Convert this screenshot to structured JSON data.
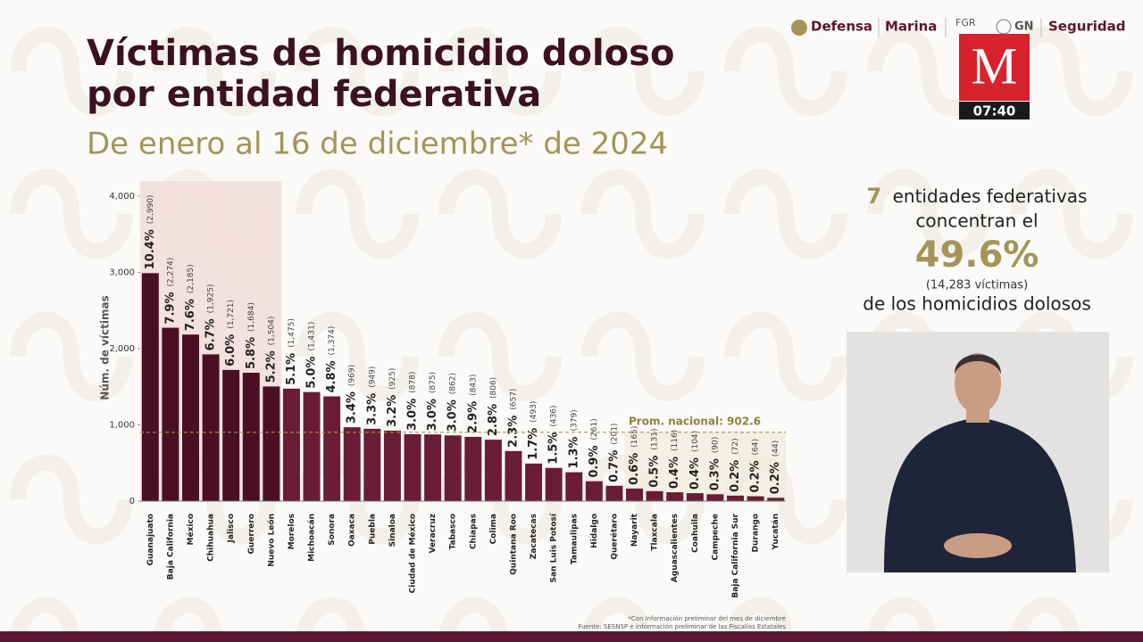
{
  "chart_data": {
    "type": "bar",
    "title": [
      "Víctimas de homicidio doloso",
      "por entidad federativa"
    ],
    "subtitle": "De enero al 16 de diciembre* de 2024",
    "y_label": "Núm. de víctimas",
    "categories": [
      "Guanajuato",
      "Baja California",
      "México",
      "Chihuahua",
      "Jalisco",
      "Guerrero",
      "Nuevo León",
      "Morelos",
      "Michoacán",
      "Sonora",
      "Oaxaca",
      "Puebla",
      "Sinaloa",
      "Ciudad de México",
      "Veracruz",
      "Tabasco",
      "Chiapas",
      "Colima",
      "Quintana Roo",
      "Zacatecas",
      "San Luis Potosí",
      "Tamaulipas",
      "Hidalgo",
      "Querétaro",
      "Nayarit",
      "Tlaxcala",
      "Aguascalientes",
      "Coahuila",
      "Campeche",
      "Baja California Sur",
      "Durango",
      "Yucatán"
    ],
    "values": [
      2990,
      2274,
      2185,
      1925,
      1721,
      1684,
      1504,
      1475,
      1431,
      1374,
      969,
      949,
      925,
      878,
      875,
      862,
      843,
      806,
      657,
      493,
      436,
      379,
      261,
      201,
      165,
      131,
      116,
      104,
      90,
      72,
      64,
      44
    ],
    "value_labels": [
      "(2,990)",
      "(2,274)",
      "(2,185)",
      "(1,925)",
      "(1,721)",
      "(1,684)",
      "(1,504)",
      "(1,475)",
      "(1,431)",
      "(1,374)",
      "(969)",
      "(949)",
      "(925)",
      "(878)",
      "(875)",
      "(862)",
      "(843)",
      "(806)",
      "(657)",
      "(493)",
      "(436)",
      "(379)",
      "(261)",
      "(201)",
      "(165)",
      "(131)",
      "(116)",
      "(104)",
      "(90)",
      "(72)",
      "(64)",
      "(44)"
    ],
    "percentages": [
      10.4,
      7.9,
      7.6,
      6.7,
      6.0,
      5.8,
      5.2,
      5.1,
      5.0,
      4.8,
      3.4,
      3.3,
      3.2,
      3.0,
      3.0,
      3.0,
      2.9,
      2.8,
      2.3,
      1.7,
      1.5,
      1.3,
      0.9,
      0.7,
      0.6,
      0.5,
      0.4,
      0.4,
      0.3,
      0.2,
      0.2,
      0.2
    ],
    "percentage_labels": [
      "10.4%",
      "7.9%",
      "7.6%",
      "6.7%",
      "6.0%",
      "5.8%",
      "5.2%",
      "5.1%",
      "5.0%",
      "4.8%",
      "3.4%",
      "3.3%",
      "3.2%",
      "3.0%",
      "3.0%",
      "3.0%",
      "2.9%",
      "2.8%",
      "2.3%",
      "1.7%",
      "1.5%",
      "1.3%",
      "0.9%",
      "0.7%",
      "0.6%",
      "0.5%",
      "0.4%",
      "0.4%",
      "0.3%",
      "0.2%",
      "0.2%",
      "0.2%"
    ],
    "color": "#6a1c37",
    "highlight_color": "#4a0f25",
    "ylim": [
      0,
      4000
    ],
    "yticks": [
      0,
      {
        "value": 1000,
        "label": "1,000"
      },
      {
        "value": 2000,
        "label": "2,000"
      },
      {
        "value": 3000,
        "label": "3,000"
      },
      {
        "value": 4000,
        "label": "4,000"
      }
    ],
    "average": 902.6,
    "average_label": "Prom. nacional: 902.6",
    "footnotes": [
      "*Con información preliminar del mes de diciembre",
      "Fuente: SESNSP e información preliminar de las Fiscalías Estatales"
    ]
  },
  "panel": {
    "count": 7,
    "line1": "entidades federativas",
    "line2": "concentran el",
    "share": "49.6%",
    "victims": "(14,283  víctimas)",
    "line3": "de los homicidios dolosos"
  },
  "header": {
    "logos": [
      "Defensa",
      "Marina",
      "FGR",
      "GN",
      "Seguridad"
    ],
    "channel": "M",
    "clock": "07:40"
  }
}
